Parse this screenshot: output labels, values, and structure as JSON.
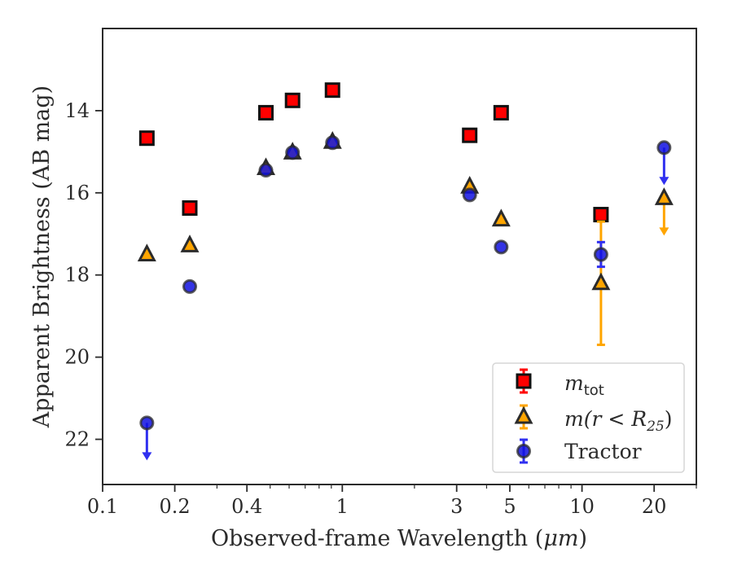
{
  "chart_data": {
    "type": "scatter",
    "title": "",
    "xlabel_text": "Observed-frame Wavelength (",
    "xlabel_unit": "μm",
    "xlabel_close": ")",
    "ylabel": "Apparent Brightness (AB mag)",
    "xscale": "log",
    "xlim": [
      0.1,
      30
    ],
    "ylim": [
      23.1,
      12.0
    ],
    "y_inverted": true,
    "x_ticks": [
      0.1,
      0.2,
      0.4,
      1,
      3,
      5,
      10,
      20
    ],
    "x_tick_labels": [
      "0.1",
      "0.2",
      "0.4",
      "1",
      "3",
      "5",
      "10",
      "20"
    ],
    "y_ticks": [
      14,
      16,
      18,
      20,
      22
    ],
    "y_tick_labels": [
      "14",
      "16",
      "18",
      "20",
      "22"
    ],
    "grid": false,
    "legend_position": "bottom-right",
    "series": [
      {
        "legend_main": "m",
        "legend_sub": "tot",
        "marker": "square",
        "face_color": "#ff0000",
        "edge_color": "#111111",
        "err_color": "#ff0000",
        "points": [
          {
            "x": 0.153,
            "y": 14.67
          },
          {
            "x": 0.231,
            "y": 16.37
          },
          {
            "x": 0.48,
            "y": 14.05
          },
          {
            "x": 0.62,
            "y": 13.75
          },
          {
            "x": 0.91,
            "y": 13.5
          },
          {
            "x": 3.4,
            "y": 14.6
          },
          {
            "x": 4.6,
            "y": 14.05
          },
          {
            "x": 12.0,
            "y": 16.53,
            "err_low": 0.1,
            "err_high": 0.1
          }
        ]
      },
      {
        "legend_main": "m(r < R",
        "legend_sub": "25",
        "legend_close": ")",
        "marker": "triangle",
        "face_color": "#ffa500",
        "edge_color": "#2b2b2b",
        "err_color": "#ffa500",
        "points": [
          {
            "x": 0.153,
            "y": 17.5
          },
          {
            "x": 0.231,
            "y": 17.28
          },
          {
            "x": 0.48,
            "y": 15.4
          },
          {
            "x": 0.62,
            "y": 15.02
          },
          {
            "x": 0.91,
            "y": 14.76
          },
          {
            "x": 3.4,
            "y": 15.85
          },
          {
            "x": 4.6,
            "y": 16.65
          },
          {
            "x": 12.0,
            "y": 18.2,
            "err_low": 1.5,
            "err_high": 1.5
          },
          {
            "x": 22.0,
            "y": 16.13,
            "upper_limit": true
          }
        ]
      },
      {
        "legend_main": "Tractor",
        "marker": "circle",
        "face_color": "#1010e0",
        "edge_color": "#2b2b2b",
        "err_color": "#3030f0",
        "points": [
          {
            "x": 0.153,
            "y": 21.6,
            "upper_limit": true
          },
          {
            "x": 0.231,
            "y": 18.28
          },
          {
            "x": 0.48,
            "y": 15.45
          },
          {
            "x": 0.62,
            "y": 15.02
          },
          {
            "x": 0.91,
            "y": 14.78
          },
          {
            "x": 3.4,
            "y": 16.05
          },
          {
            "x": 4.6,
            "y": 17.32
          },
          {
            "x": 12.0,
            "y": 17.5,
            "err_low": 0.3,
            "err_high": 0.3
          },
          {
            "x": 22.0,
            "y": 14.9,
            "upper_limit": true
          }
        ]
      }
    ]
  }
}
